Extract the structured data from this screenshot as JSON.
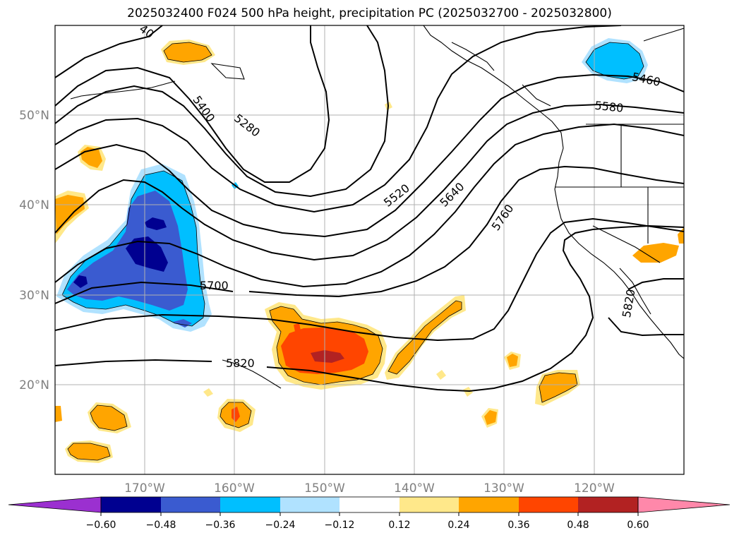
{
  "title": "2025032400 F024 500 hPa height, precipitation PC (2025032700 - 2025032800)",
  "map": {
    "lon_range": [
      -180,
      -110
    ],
    "lat_range": [
      10,
      60
    ],
    "lon_ticks": [
      {
        "lon": -170,
        "label": "170°W"
      },
      {
        "lon": -160,
        "label": "160°W"
      },
      {
        "lon": -150,
        "label": "150°W"
      },
      {
        "lon": -140,
        "label": "140°W"
      },
      {
        "lon": -130,
        "label": "130°W"
      },
      {
        "lon": -120,
        "label": "120°W"
      }
    ],
    "lat_ticks": [
      {
        "lat": 20,
        "label": "20°N"
      },
      {
        "lat": 30,
        "label": "30°N"
      },
      {
        "lat": 40,
        "label": "40°N"
      },
      {
        "lat": 50,
        "label": "50°N"
      }
    ],
    "gridlines": true,
    "grid_color": "#b0b0b0",
    "contour_labels": [
      "5280",
      "5400",
      "5460",
      "5520",
      "5580",
      "5640",
      "5700",
      "5760",
      "5820",
      "5820",
      "5820",
      "40"
    ]
  },
  "colorbar": {
    "ticks": [
      "−0.60",
      "−0.48",
      "−0.36",
      "−0.24",
      "−0.12",
      "0.12",
      "0.24",
      "0.36",
      "0.48",
      "0.60"
    ],
    "colors": [
      "#9b30d0",
      "#000090",
      "#3a5bd0",
      "#00bfff",
      "#b0e2ff",
      "#ffffff",
      "#ffe88a",
      "#ffa500",
      "#ff4500",
      "#b22222",
      "#ff88aa"
    ]
  },
  "colors": {
    "deep_blue": "#000090",
    "mid_blue": "#3a5bd0",
    "cyan": "#00bfff",
    "light_blue": "#b0e2ff",
    "light_yellow": "#ffe88a",
    "orange": "#ffa500",
    "red_orange": "#ff4500",
    "dark_red": "#b22222"
  }
}
